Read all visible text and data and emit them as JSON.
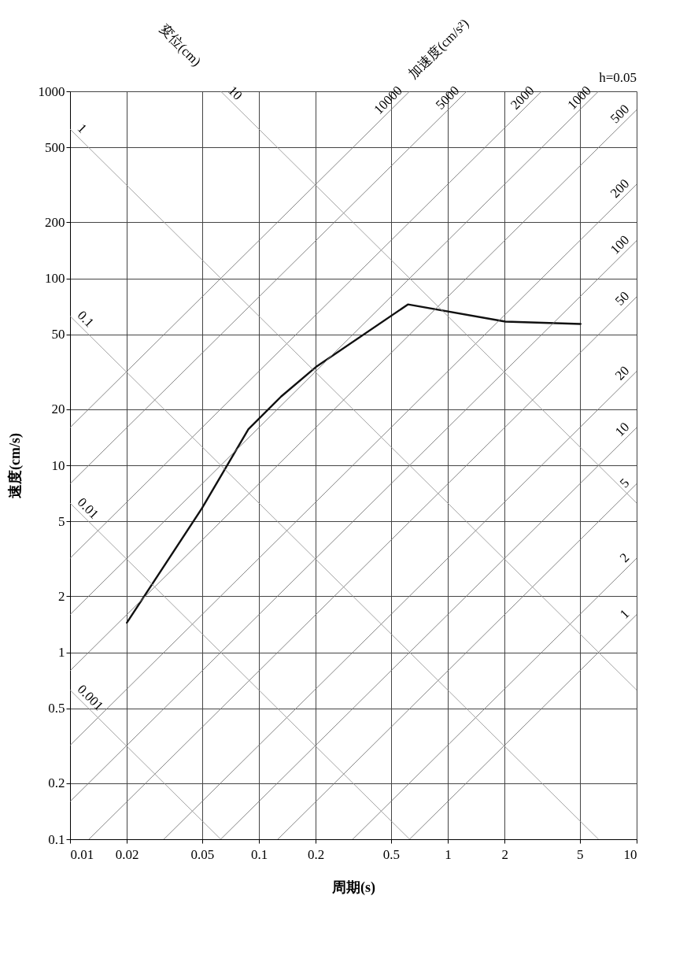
{
  "chart_data": {
    "type": "line",
    "xlabel": "周期(s)",
    "ylabel": "速度(cm/s)",
    "annotations": [
      "変位(cm)",
      "加速度(cm/s²)",
      "h=0.05"
    ],
    "xlim": [
      0.01,
      10
    ],
    "ylim": [
      0.1,
      1000
    ],
    "log": "xy",
    "grid": true,
    "legend": false,
    "xticks": [
      0.01,
      0.02,
      0.05,
      0.1,
      0.2,
      0.5,
      1,
      2,
      5,
      10
    ],
    "yticks": [
      0.1,
      0.2,
      0.5,
      1,
      2,
      5,
      10,
      20,
      50,
      100,
      200,
      500,
      1000
    ],
    "series": [
      {
        "color": "#111111",
        "x": [
          0.02,
          0.05,
          0.088,
          0.131,
          0.2,
          0.615,
          2.02,
          5.05
        ],
        "values": [
          1.44,
          5.9,
          15.6,
          23.3,
          33.5,
          72.5,
          58.7,
          57
        ]
      },
      {
        "name": "10000",
        "color": "#777777",
        "x": [
          0.01,
          0.628
        ],
        "values": [
          15.9,
          1000
        ]
      },
      {
        "name": "5000",
        "color": "#777777",
        "x": [
          0.01,
          1.26
        ],
        "values": [
          7.96,
          1000
        ]
      },
      {
        "name": "2000",
        "color": "#777777",
        "x": [
          0.01,
          3.14
        ],
        "values": [
          3.18,
          1000
        ]
      },
      {
        "name": "1000",
        "color": "#777777",
        "x": [
          0.01,
          6.28
        ],
        "values": [
          1.59,
          1000
        ]
      },
      {
        "name": "500",
        "color": "#777777",
        "x": [
          0.01,
          10
        ],
        "values": [
          0.796,
          796
        ]
      },
      {
        "name": "200",
        "color": "#777777",
        "x": [
          0.01,
          10
        ],
        "values": [
          0.318,
          318
        ]
      },
      {
        "name": "100",
        "color": "#777777",
        "x": [
          0.01,
          10
        ],
        "values": [
          0.159,
          159
        ]
      },
      {
        "name": "50",
        "color": "#777777",
        "x": [
          0.0126,
          10
        ],
        "values": [
          0.1,
          79.6
        ]
      },
      {
        "name": "20",
        "color": "#777777",
        "x": [
          0.0314,
          10
        ],
        "values": [
          0.1,
          31.8
        ]
      },
      {
        "name": "10",
        "color": "#777777",
        "x": [
          0.0628,
          10
        ],
        "values": [
          0.1,
          15.9
        ]
      },
      {
        "name": "5",
        "color": "#777777",
        "x": [
          0.126,
          10
        ],
        "values": [
          0.1,
          7.96
        ]
      },
      {
        "name": "2",
        "color": "#777777",
        "x": [
          0.314,
          10
        ],
        "values": [
          0.1,
          3.18
        ]
      },
      {
        "name": "1",
        "color": "#777777",
        "x": [
          0.628,
          10
        ],
        "values": [
          0.1,
          1.59
        ]
      },
      {
        "name": "10",
        "color": "#999999",
        "x": [
          0.0628,
          10
        ],
        "values": [
          1000,
          6.28
        ]
      },
      {
        "name": "1",
        "color": "#999999",
        "x": [
          0.01,
          10
        ],
        "values": [
          628,
          0.628
        ]
      },
      {
        "name": "0.1",
        "color": "#999999",
        "x": [
          0.01,
          6.28
        ],
        "values": [
          62.8,
          0.1
        ]
      },
      {
        "name": "0.01",
        "color": "#999999",
        "x": [
          0.01,
          0.628
        ],
        "values": [
          6.28,
          0.1
        ]
      },
      {
        "name": "0.001",
        "color": "#999999",
        "x": [
          0.01,
          0.0628
        ],
        "values": [
          0.628,
          0.1
        ]
      }
    ]
  }
}
